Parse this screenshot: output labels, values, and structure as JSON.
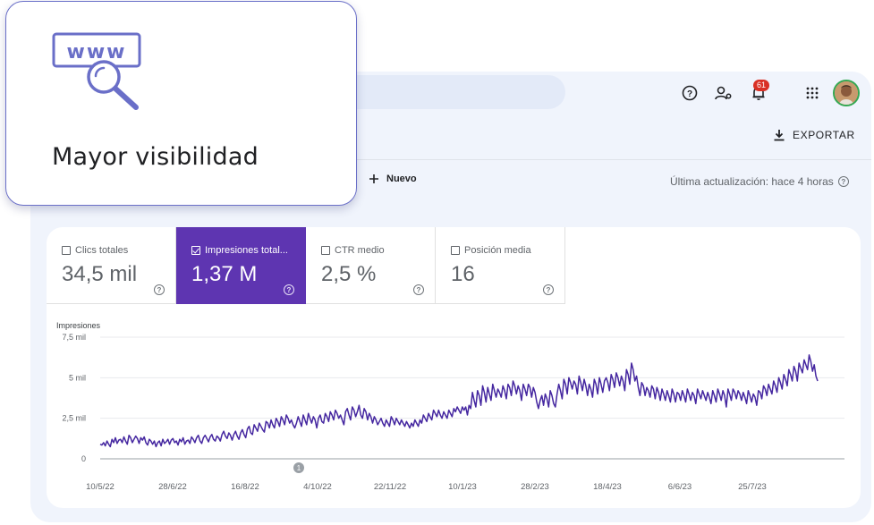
{
  "callout": {
    "title": "Mayor visibilidad",
    "icon": "www-search-icon",
    "icon_text": "www",
    "icon_color": "#6a6fc8"
  },
  "header": {
    "notifications_count": "61",
    "icons": [
      "help-icon",
      "manage-users-icon",
      "notifications-icon",
      "apps-grid-icon",
      "avatar"
    ]
  },
  "toolbar": {
    "export_label": "EXPORTAR",
    "new_label": "Nuevo",
    "last_updated": "Última actualización: hace 4 horas"
  },
  "metrics": [
    {
      "label": "Clics totales",
      "value": "34,5 mil",
      "selected": false
    },
    {
      "label": "Impresiones total...",
      "value": "1,37 M",
      "selected": true
    },
    {
      "label": "CTR medio",
      "value": "2,5 %",
      "selected": false
    },
    {
      "label": "Posición media",
      "value": "16",
      "selected": false
    }
  ],
  "colors": {
    "accent": "#5e35b1",
    "panel_bg": "#f0f4fc",
    "line": "#4527a0",
    "badge": "#d93025"
  },
  "chart_data": {
    "type": "line",
    "ylabel": "Impresiones",
    "ylim": [
      0,
      7500
    ],
    "y_ticks": [
      {
        "value": 0,
        "label": "0"
      },
      {
        "value": 2500,
        "label": "2,5 mil"
      },
      {
        "value": 5000,
        "label": "5 mil"
      },
      {
        "value": 7500,
        "label": "7,5 mil"
      }
    ],
    "x_ticks": [
      "10/5/22",
      "28/6/22",
      "16/8/22",
      "4/10/22",
      "22/11/22",
      "10/1/23",
      "28/2/23",
      "18/4/23",
      "6/6/23",
      "25/7/23"
    ],
    "annotation": {
      "label": "1",
      "at_x_tick": 3
    },
    "series": [
      {
        "values": [
          900,
          850,
          1000,
          800,
          1100,
          900,
          750,
          1200,
          1000,
          1300,
          950,
          1150,
          1200,
          1000,
          1350,
          1100,
          900,
          1450,
          1300,
          1000,
          1200,
          1400,
          1250,
          950,
          1300,
          1150,
          1350,
          1000,
          850,
          1200,
          1100,
          900,
          1100,
          750,
          1000,
          1100,
          800,
          1200,
          950,
          1050,
          1200,
          900,
          1150,
          1250,
          1000,
          1100,
          850,
          1200,
          1050,
          1300,
          900,
          1100,
          1150,
          950,
          1350,
          1200,
          1000,
          1300,
          1450,
          1100,
          950,
          1300,
          1450,
          1250,
          1050,
          1350,
          1500,
          1200,
          1100,
          1400,
          1300,
          1100,
          1500,
          1700,
          1400,
          1250,
          1600,
          1450,
          1150,
          1500,
          1700,
          1400,
          1200,
          1600,
          1800,
          1500,
          1300,
          1850,
          2000,
          1600,
          1500,
          2100,
          1900,
          1700,
          2200,
          2000,
          1800,
          1650,
          2300,
          2200,
          1900,
          2400,
          2100,
          1900,
          2500,
          2300,
          2000,
          2600,
          2400,
          2100,
          2700,
          2500,
          2200,
          2400,
          2100,
          1900,
          2200,
          2600,
          2300,
          2000,
          2700,
          2400,
          2100,
          2800,
          2500,
          2200,
          2600,
          2400,
          1900,
          2500,
          2700,
          2300,
          2200,
          2800,
          2600,
          2300,
          2900,
          2700,
          2400,
          3000,
          2800,
          2500,
          2700,
          2400,
          2100,
          2900,
          3100,
          2700,
          2400,
          3200,
          3000,
          2600,
          2900,
          3300,
          2700,
          2500,
          3100,
          2900,
          2400,
          2800,
          2600,
          2200,
          2600,
          2400,
          2100,
          2300,
          2500,
          2200,
          2000,
          2400,
          2200,
          2000,
          2600,
          2400,
          2100,
          2500,
          2300,
          2100,
          2400,
          2200,
          2000,
          2300,
          2100,
          1900,
          2200,
          2000,
          2400,
          2200,
          2000,
          2400,
          2200,
          2700,
          2500,
          2300,
          2800,
          2600,
          2400,
          3000,
          2800,
          2600,
          3000,
          2700,
          2500,
          2900,
          2700,
          2500,
          3000,
          2800,
          2600,
          3100,
          2900,
          3200,
          3000,
          2800,
          3200,
          3000,
          3200,
          2700,
          3300,
          3100,
          4100,
          3600,
          3200,
          4200,
          3900,
          3300,
          4500,
          4100,
          3500,
          4400,
          4000,
          3600,
          4600,
          4200,
          3800,
          4300,
          4100,
          3800,
          4500,
          4200,
          3700,
          4600,
          4400,
          3900,
          4800,
          4500,
          4000,
          4500,
          4200,
          3600,
          4600,
          4300,
          3900,
          4600,
          4400,
          3800,
          4400,
          4100,
          3500,
          3100,
          3600,
          3900,
          3300,
          4000,
          3700,
          3200,
          4200,
          3900,
          3400,
          3200,
          4000,
          4600,
          4200,
          3700,
          4900,
          4600,
          4000,
          5000,
          4700,
          4300,
          4800,
          4600,
          4000,
          5100,
          4700,
          4200,
          4900,
          4500,
          3900,
          4600,
          4300,
          3800,
          4900,
          4600,
          4000,
          5000,
          4600,
          4100,
          4800,
          5000,
          4700,
          4200,
          5200,
          4900,
          4400,
          5300,
          5000,
          4500,
          5100,
          4800,
          4200,
          5500,
          5200,
          4600,
          5900,
          5500,
          4800,
          5100,
          4400,
          3900,
          4700,
          4500,
          3900,
          4400,
          4200,
          3800,
          4500,
          4300,
          3700,
          4400,
          4100,
          3600,
          4300,
          4000,
          3600,
          4200,
          3900,
          3500,
          4300,
          4000,
          3500,
          4100,
          4000,
          3600,
          4200,
          3900,
          3500,
          4300,
          4000,
          3600,
          4100,
          3900,
          3400,
          4300,
          4000,
          3700,
          4200,
          3900,
          3600,
          4100,
          3800,
          3400,
          4200,
          3900,
          3500,
          4300,
          4000,
          3600,
          4200,
          3900,
          3200,
          4300,
          4000,
          3600,
          4300,
          4100,
          3700,
          4200,
          4000,
          3600,
          4100,
          3800,
          3400,
          4200,
          3900,
          3500,
          4000,
          3800,
          3300,
          4200,
          4100,
          3700,
          4500,
          4300,
          3900,
          4600,
          4300,
          4000,
          4800,
          4500,
          4100,
          5000,
          4700,
          4300,
          5200,
          4900,
          4500,
          5500,
          5200,
          4800,
          5700,
          5400,
          4800,
          5900,
          5600,
          5300,
          6100,
          5800,
          5500,
          6400,
          6000,
          5400,
          5800,
          5100,
          4800
        ],
        "start": "10/5/22"
      }
    ]
  }
}
